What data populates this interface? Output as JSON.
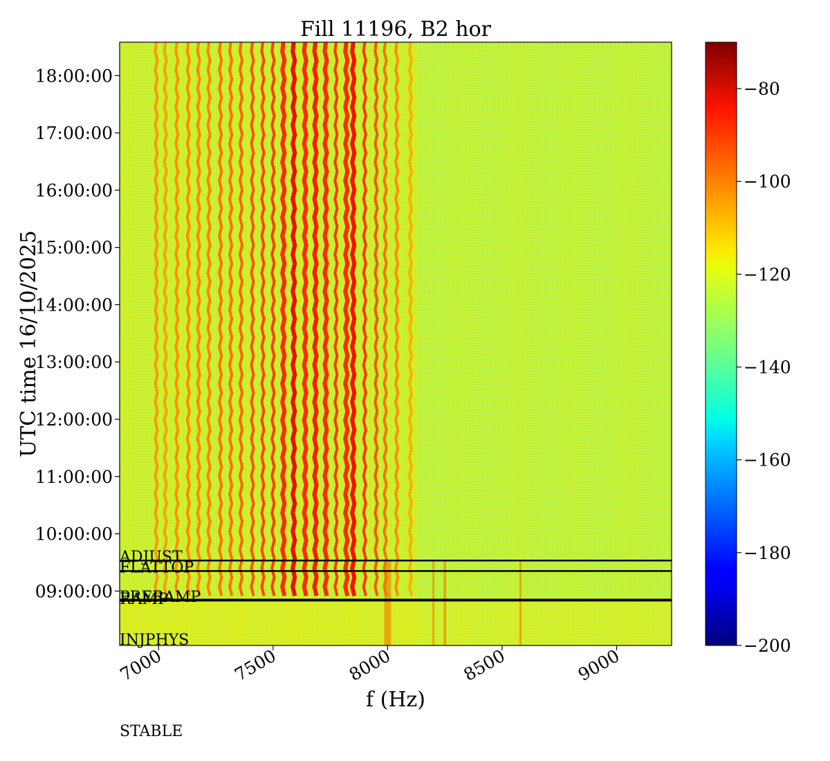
{
  "chart_data": {
    "type": "heatmap",
    "title": "Fill 11196, B2 hor",
    "xlabel": "f (Hz)",
    "ylabel": "UTC time 16/10/2025",
    "xlim": [
      6830,
      9240
    ],
    "ylim": [
      "08:03:00",
      "18:35:00"
    ],
    "x_ticks": [
      "7000",
      "7500",
      "8000",
      "8500",
      "9000"
    ],
    "x_tick_values": [
      7000,
      7500,
      8000,
      8500,
      9000
    ],
    "y_ticks": [
      "09:00:00",
      "10:00:00",
      "11:00:00",
      "12:00:00",
      "13:00:00",
      "14:00:00",
      "15:00:00",
      "16:00:00",
      "17:00:00",
      "18:00:00"
    ],
    "colorbar": {
      "colormap": "jet",
      "range": [
        -200,
        -70
      ],
      "ticks": [
        "−200",
        "−180",
        "−160",
        "−140",
        "−120",
        "−100",
        "−80"
      ],
      "tick_values": [
        -200,
        -180,
        -160,
        -140,
        -120,
        -100,
        -80
      ]
    },
    "beam_mode_lines": [
      "08:50:00",
      "08:51:00",
      "09:21:00",
      "09:32:00"
    ],
    "beam_mode_labels": [
      {
        "text": "ADJUST",
        "time": "09:32:00"
      },
      {
        "text": "FLATTOP",
        "time": "09:21:00"
      },
      {
        "text": "RAMP",
        "time": "08:51:00"
      },
      {
        "text": "PRERAMP",
        "time": "08:50:00"
      },
      {
        "text": "INJPHYS",
        "time": "08:03:00"
      },
      {
        "text": "STABLE",
        "time": ""
      }
    ],
    "spectral_lines": [
      {
        "f": 6990,
        "level": -105,
        "from": "08:55:00"
      },
      {
        "f": 7030,
        "level": -106,
        "from": "08:55:00"
      },
      {
        "f": 7080,
        "level": -104,
        "from": "08:55:00"
      },
      {
        "f": 7130,
        "level": -103,
        "from": "08:55:00"
      },
      {
        "f": 7175,
        "level": -103,
        "from": "08:55:00"
      },
      {
        "f": 7220,
        "level": -102,
        "from": "08:55:00"
      },
      {
        "f": 7270,
        "level": -100,
        "from": "08:55:00"
      },
      {
        "f": 7315,
        "level": -100,
        "from": "08:55:00"
      },
      {
        "f": 7360,
        "level": -98,
        "from": "08:55:00"
      },
      {
        "f": 7410,
        "level": -96,
        "from": "08:55:00"
      },
      {
        "f": 7455,
        "level": -94,
        "from": "08:55:00"
      },
      {
        "f": 7500,
        "level": -93,
        "from": "08:55:00"
      },
      {
        "f": 7545,
        "level": -90,
        "from": "08:55:00"
      },
      {
        "f": 7590,
        "level": -84,
        "from": "08:55:00"
      },
      {
        "f": 7640,
        "level": -90,
        "from": "08:55:00"
      },
      {
        "f": 7685,
        "level": -88,
        "from": "08:55:00"
      },
      {
        "f": 7730,
        "level": -90,
        "from": "08:55:00"
      },
      {
        "f": 7775,
        "level": -92,
        "from": "08:55:00"
      },
      {
        "f": 7820,
        "level": -90,
        "from": "08:55:00"
      },
      {
        "f": 7850,
        "level": -86,
        "from": "08:55:00"
      },
      {
        "f": 7900,
        "level": -92,
        "from": "08:55:00"
      },
      {
        "f": 7950,
        "level": -96,
        "from": "08:55:00"
      },
      {
        "f": 7990,
        "level": -100,
        "from": "08:55:00"
      },
      {
        "f": 8040,
        "level": -104,
        "from": "08:55:00"
      },
      {
        "f": 8100,
        "level": -108,
        "from": "08:55:00"
      }
    ],
    "background_level": -122
  }
}
